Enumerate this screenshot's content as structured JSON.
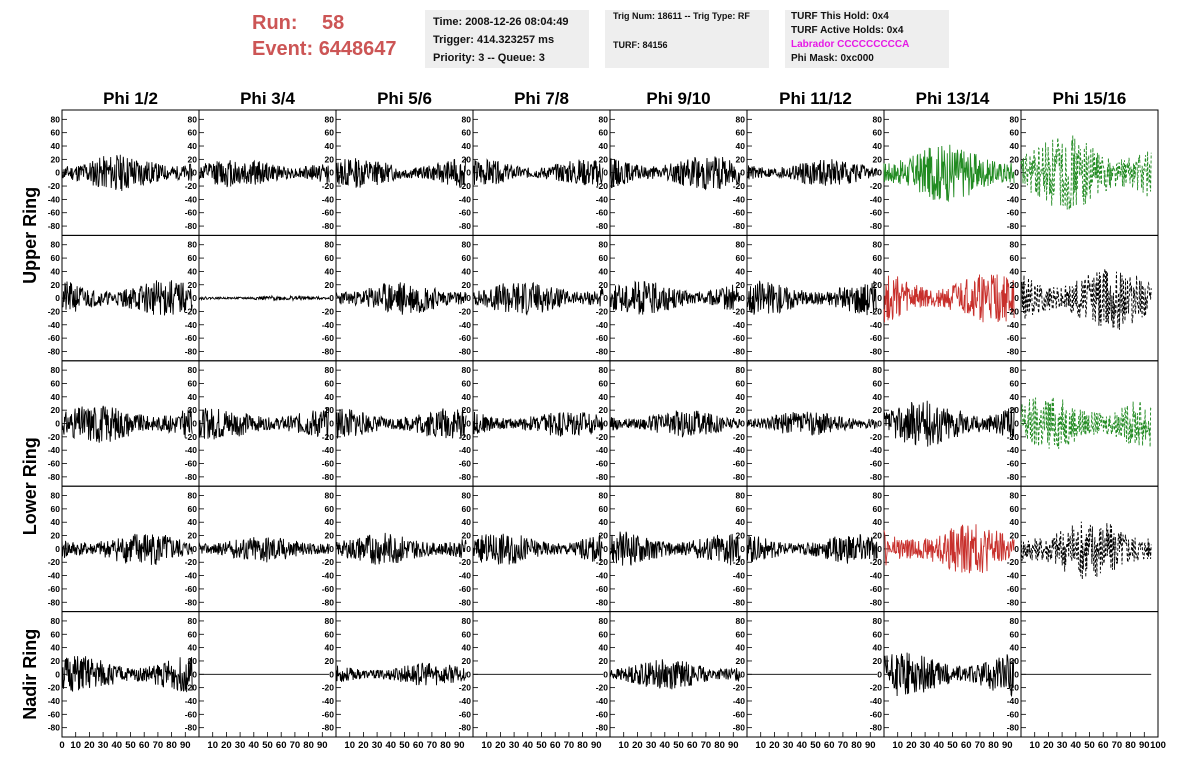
{
  "header": {
    "run_label": "Run:",
    "run_value": "58",
    "event_label": "Event:",
    "event_value": "6448647",
    "time_line": "Time: 2008-12-26 08:04:49",
    "trigger_line": "Trigger: 414.323257 ms",
    "priority_line": "Priority: 3 -- Queue: 3",
    "trig_line": "Trig Num: 18611 -- Trig Type: RF",
    "turf_line": "TURF: 84156",
    "turf_hold_line": "TURF This Hold: 0x4",
    "turf_active_line": "TURF Active Holds: 0x4",
    "labrador_line": "Labrador CCCCCCCCCA",
    "phimask_line": "Phi Mask: 0xc000",
    "colors": {
      "run_text": "#cc5555",
      "labrador": "#e619e6",
      "box_bg": "#eeeeee"
    }
  },
  "chart_data": {
    "type": "line",
    "description_note": "",
    "columns": [
      "Phi 1/2",
      "Phi 3/4",
      "Phi 5/6",
      "Phi 7/8",
      "Phi 9/10",
      "Phi 11/12",
      "Phi 13/14",
      "Phi 15/16"
    ],
    "row_groups": [
      {
        "label": "Upper Ring",
        "rows": [
          0,
          1
        ]
      },
      {
        "label": "Lower Ring",
        "rows": [
          2,
          3
        ]
      },
      {
        "label": "Nadir Ring",
        "rows": [
          4
        ]
      }
    ],
    "xlim": [
      0,
      100
    ],
    "ylim": [
      -85,
      85
    ],
    "y_ticks": [
      -80,
      -60,
      -40,
      -20,
      0,
      20,
      40,
      60,
      80
    ],
    "x_tick_labels": [
      "0",
      "10",
      "20",
      "30",
      "40",
      "50",
      "60",
      "70",
      "80",
      "90",
      "100"
    ],
    "trace_samples": 260,
    "trace_x_end": 95,
    "colors": {
      "normal": "#000000",
      "highlight_green": "#228b22",
      "highlight_red": "#c8302c"
    },
    "panels": [
      [
        {
          "amp": 16,
          "style": "solid",
          "color": "normal",
          "seed": 11
        },
        {
          "amp": 13,
          "style": "solid",
          "color": "normal",
          "seed": 12
        },
        {
          "amp": 13,
          "style": "solid",
          "color": "normal",
          "seed": 13
        },
        {
          "amp": 12,
          "style": "solid",
          "color": "normal",
          "seed": 14
        },
        {
          "amp": 15,
          "style": "solid",
          "color": "normal",
          "seed": 15
        },
        {
          "amp": 12,
          "style": "solid",
          "color": "normal",
          "seed": 16
        },
        {
          "amp": 25,
          "style": "solid",
          "color": "highlight_green",
          "seed": 17
        },
        {
          "amp": 33,
          "style": "dashed",
          "color": "highlight_green",
          "seed": 18
        }
      ],
      [
        {
          "amp": 16,
          "style": "solid",
          "color": "normal",
          "seed": 21
        },
        {
          "amp": 2,
          "style": "solid",
          "color": "normal",
          "seed": 22
        },
        {
          "amp": 15,
          "style": "solid",
          "color": "normal",
          "seed": 23
        },
        {
          "amp": 15,
          "style": "solid",
          "color": "normal",
          "seed": 24
        },
        {
          "amp": 15,
          "style": "solid",
          "color": "normal",
          "seed": 25
        },
        {
          "amp": 15,
          "style": "solid",
          "color": "normal",
          "seed": 26
        },
        {
          "amp": 22,
          "style": "solid",
          "color": "highlight_red",
          "seed": 27
        },
        {
          "amp": 28,
          "style": "dashed",
          "color": "normal",
          "seed": 28
        }
      ],
      [
        {
          "amp": 17,
          "style": "solid",
          "color": "normal",
          "seed": 31
        },
        {
          "amp": 14,
          "style": "solid",
          "color": "normal",
          "seed": 32
        },
        {
          "amp": 14,
          "style": "solid",
          "color": "normal",
          "seed": 33
        },
        {
          "amp": 12,
          "style": "solid",
          "color": "normal",
          "seed": 34
        },
        {
          "amp": 12,
          "style": "solid",
          "color": "normal",
          "seed": 35
        },
        {
          "amp": 11,
          "style": "solid",
          "color": "normal",
          "seed": 36
        },
        {
          "amp": 20,
          "style": "solid",
          "color": "normal",
          "seed": 37
        },
        {
          "amp": 25,
          "style": "dashed",
          "color": "highlight_green",
          "seed": 38
        }
      ],
      [
        {
          "amp": 15,
          "style": "solid",
          "color": "normal",
          "seed": 41
        },
        {
          "amp": 12,
          "style": "solid",
          "color": "normal",
          "seed": 42
        },
        {
          "amp": 14,
          "style": "solid",
          "color": "normal",
          "seed": 43
        },
        {
          "amp": 14,
          "style": "solid",
          "color": "normal",
          "seed": 44
        },
        {
          "amp": 15,
          "style": "solid",
          "color": "normal",
          "seed": 45
        },
        {
          "amp": 13,
          "style": "solid",
          "color": "normal",
          "seed": 46
        },
        {
          "amp": 22,
          "style": "solid",
          "color": "highlight_red",
          "seed": 47
        },
        {
          "amp": 27,
          "style": "dashed",
          "color": "normal",
          "seed": 48
        }
      ],
      [
        {
          "amp": 16,
          "style": "solid",
          "color": "normal",
          "seed": 51
        },
        {
          "amp": 0,
          "style": "solid",
          "color": "normal",
          "seed": 52
        },
        {
          "amp": 10,
          "style": "solid",
          "color": "normal",
          "seed": 53
        },
        {
          "amp": 0,
          "style": "solid",
          "color": "normal",
          "seed": 54
        },
        {
          "amp": 13,
          "style": "solid",
          "color": "normal",
          "seed": 55
        },
        {
          "amp": 0,
          "style": "solid",
          "color": "normal",
          "seed": 56
        },
        {
          "amp": 19,
          "style": "solid",
          "color": "normal",
          "seed": 57
        },
        {
          "amp": 0,
          "style": "solid",
          "color": "normal",
          "seed": 58
        }
      ]
    ]
  }
}
